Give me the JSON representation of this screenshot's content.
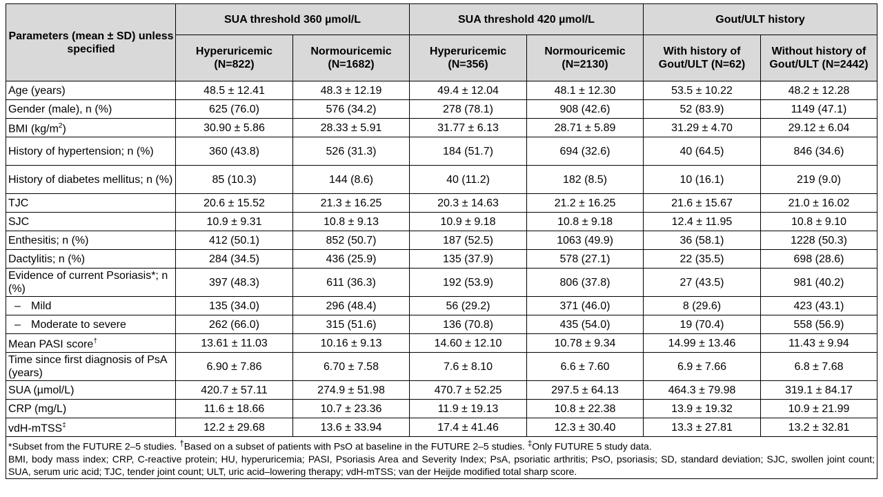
{
  "header": {
    "param_col": "Parameters (mean ± SD) unless specified",
    "groups": [
      "SUA threshold 360 µmol/L",
      "SUA threshold 420 µmol/L",
      "Gout/ULT history"
    ],
    "subgroups": [
      {
        "line1": "Hyperuricemic",
        "line2": "(N=822)"
      },
      {
        "line1": "Normouricemic",
        "line2": "(N=1682)"
      },
      {
        "line1": "Hyperuricemic",
        "line2": "(N=356)"
      },
      {
        "line1": "Normouricemic",
        "line2": "(N=2130)"
      },
      {
        "line1": "With history of",
        "line2": "Gout/ULT (N=62)"
      },
      {
        "line1": "Without history of",
        "line2": "Gout/ULT (N=2442)"
      }
    ]
  },
  "rows": [
    {
      "label": "Age (years)",
      "values": [
        "48.5 ± 12.41",
        "48.3 ± 12.19",
        "49.4 ± 12.04",
        "48.1 ± 12.30",
        "53.5 ± 10.22",
        "48.2 ± 12.28"
      ]
    },
    {
      "label": "Gender (male), n (%)",
      "values": [
        "625 (76.0)",
        "576 (34.2)",
        "278 (78.1)",
        "908 (42.6)",
        "52 (83.9)",
        "1149 (47.1)"
      ]
    },
    {
      "label_pre": "BMI (kg/m",
      "label_sup": "2",
      "label_post": ")",
      "values": [
        "30.90 ± 5.86",
        "28.33 ± 5.91",
        "31.77 ± 6.13",
        "28.71 ± 5.89",
        "31.29 ± 4.70",
        "29.12 ± 6.04"
      ]
    },
    {
      "label": "History of hypertension; n (%)",
      "values": [
        "360 (43.8)",
        "526 (31.3)",
        "184 (51.7)",
        "694 (32.6)",
        "40 (64.5)",
        "846 (34.6)"
      ]
    },
    {
      "label": "History of diabetes mellitus; n (%)",
      "values": [
        "85 (10.3)",
        "144 (8.6)",
        "40 (11.2)",
        "182 (8.5)",
        "10 (16.1)",
        "219 (9.0)"
      ]
    },
    {
      "label": "TJC",
      "values": [
        "20.6 ± 15.52",
        "21.3 ± 16.25",
        "20.3 ± 14.63",
        "21.2 ± 16.25",
        "21.6 ± 15.67",
        "21.0 ± 16.02"
      ]
    },
    {
      "label": "SJC",
      "values": [
        "10.9 ± 9.31",
        "10.8 ± 9.13",
        "10.9 ± 9.18",
        "10.8 ± 9.18",
        "12.4 ± 11.95",
        "10.8 ± 9.10"
      ]
    },
    {
      "label": "Enthesitis; n (%)",
      "values": [
        "412 (50.1)",
        "852 (50.7)",
        "187 (52.5)",
        "1063 (49.9)",
        "36 (58.1)",
        "1228 (50.3)"
      ]
    },
    {
      "label": "Dactylitis; n (%)",
      "values": [
        "284 (34.5)",
        "436 (25.9)",
        "135 (37.9)",
        "578 (27.1)",
        "22 (35.5)",
        "698 (28.6)"
      ]
    },
    {
      "label": "Evidence of current Psoriasis*; n (%)",
      "values": [
        "397 (48.3)",
        "611 (36.3)",
        "192 (53.9)",
        "806 (37.8)",
        "27 (43.5)",
        "981 (40.2)"
      ]
    },
    {
      "dash": "–",
      "label": "Mild",
      "values": [
        "135 (34.0)",
        "296 (48.4)",
        "56 (29.2)",
        "371 (46.0)",
        "8 (29.6)",
        "423 (43.1)"
      ]
    },
    {
      "dash": "–",
      "label": "Moderate to severe",
      "values": [
        "262 (66.0)",
        "315 (51.6)",
        "136 (70.8)",
        "435 (54.0)",
        "19 (70.4)",
        "558 (56.9)"
      ]
    },
    {
      "label_pre": "Mean PASI score",
      "label_sup": "†",
      "label_post": "",
      "values": [
        "13.61 ± 11.03",
        "10.16 ± 9.13",
        "14.60 ± 12.10",
        "10.78 ± 9.34",
        "14.99 ± 13.46",
        "11.43 ± 9.94"
      ]
    },
    {
      "label": "Time since first diagnosis of PsA (years)",
      "values": [
        "6.90 ± 7.86",
        "6.70 ± 7.58",
        "7.6 ± 8.10",
        "6.6 ± 7.60",
        "6.9 ± 7.66",
        "6.8 ± 7.68"
      ]
    },
    {
      "label": "SUA (µmol/L)",
      "values": [
        "420.7 ± 57.11",
        "274.9 ± 51.98",
        "470.7 ± 52.25",
        "297.5 ± 64.13",
        "464.3 ± 79.98",
        "319.1 ± 84.17"
      ]
    },
    {
      "label": "CRP (mg/L)",
      "values": [
        "11.6 ± 18.66",
        "10.7 ± 23.36",
        "11.9 ± 19.13",
        "10.8 ± 22.38",
        "13.9 ± 19.32",
        "10.9 ± 21.99"
      ]
    },
    {
      "label_pre": "vdH-mTSS",
      "label_sup": "‡",
      "label_post": "",
      "values": [
        "12.2 ± 29.68",
        "13.6 ± 33.94",
        "17.4 ± 41.46",
        "12.3 ± 30.40",
        "13.3 ± 27.81",
        "13.2 ± 32.81"
      ]
    }
  ],
  "footnotes": {
    "f1_a": "*Subset from the FUTURE 2–5 studies. ",
    "f1_sup1": "†",
    "f1_b": "Based on a subset of patients with PsO at baseline in the FUTURE 2–5 studies. ",
    "f1_sup2": "‡",
    "f1_c": "Only FUTURE 5 study data.",
    "f2": "BMI, body mass index; CRP, C-reactive protein; HU, hyperuricemia; PASI, Psoriasis Area and Severity Index; PsA, psoriatic arthritis; PsO, psoriasis; SD, standard deviation; SJC, swollen joint count; SUA, serum uric acid; TJC, tender joint count; ULT, uric acid–lowering therapy; vdH-mTSS; van der Heijde modified total sharp score."
  }
}
